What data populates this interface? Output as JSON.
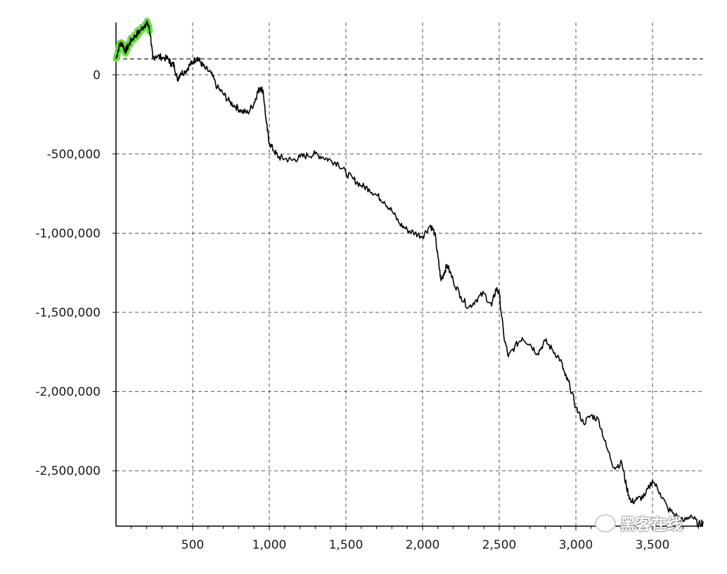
{
  "chart_data": {
    "type": "line",
    "title": "",
    "xlabel": "",
    "ylabel": "",
    "xlim": [
      0,
      3830
    ],
    "ylim": [
      -2850000,
      330000
    ],
    "x_ticks": [
      500,
      1000,
      1500,
      2000,
      2500,
      3000,
      3500
    ],
    "x_tick_labels": [
      "500",
      "1,000",
      "1,500",
      "2,000",
      "2,500",
      "3,000",
      "3,500"
    ],
    "y_ticks": [
      0,
      -500000,
      -1000000,
      -1500000,
      -2000000,
      -2500000
    ],
    "y_tick_labels": [
      "0",
      "-500,000",
      "-1,000,000",
      "-1,500,000",
      "-2,000,000",
      "-2,500,000"
    ],
    "reference_line_y": 100000,
    "grid": true,
    "line_color": "#000000",
    "highlight_color": "#66dd44",
    "highlight_x_range": [
      0,
      220
    ],
    "series": [
      {
        "x": [
          0,
          20,
          40,
          60,
          80,
          100,
          130,
          160,
          190,
          210,
          225,
          240,
          260,
          300,
          340,
          360,
          380,
          400,
          420,
          450,
          480,
          500,
          530,
          550,
          580,
          620,
          660,
          700,
          740,
          780,
          820,
          860,
          900,
          920,
          940,
          960,
          980,
          1000,
          1030,
          1060,
          1100,
          1150,
          1200,
          1250,
          1300,
          1350,
          1400,
          1450,
          1500,
          1550,
          1600,
          1650,
          1700,
          1750,
          1800,
          1850,
          1900,
          1950,
          2000,
          2050,
          2080,
          2100,
          2120,
          2140,
          2160,
          2200,
          2250,
          2300,
          2350,
          2400,
          2450,
          2480,
          2500,
          2530,
          2560,
          2600,
          2650,
          2700,
          2750,
          2800,
          2850,
          2900,
          2930,
          2960,
          3000,
          3050,
          3100,
          3150,
          3200,
          3250,
          3300,
          3330,
          3360,
          3400,
          3450,
          3500,
          3550,
          3600,
          3650,
          3700,
          3750,
          3800,
          3830
        ],
        "values": [
          100000,
          180000,
          200000,
          150000,
          180000,
          220000,
          250000,
          280000,
          320000,
          320000,
          250000,
          100000,
          120000,
          110000,
          100000,
          70000,
          60000,
          -30000,
          10000,
          20000,
          60000,
          80000,
          110000,
          80000,
          40000,
          10000,
          -80000,
          -120000,
          -170000,
          -200000,
          -230000,
          -240000,
          -180000,
          -120000,
          -80000,
          -100000,
          -300000,
          -430000,
          -480000,
          -520000,
          -530000,
          -540000,
          -520000,
          -510000,
          -500000,
          -520000,
          -540000,
          -560000,
          -620000,
          -660000,
          -700000,
          -720000,
          -760000,
          -800000,
          -860000,
          -940000,
          -980000,
          -1000000,
          -1020000,
          -950000,
          -1000000,
          -1150000,
          -1300000,
          -1250000,
          -1200000,
          -1300000,
          -1400000,
          -1470000,
          -1420000,
          -1380000,
          -1460000,
          -1350000,
          -1380000,
          -1650000,
          -1780000,
          -1720000,
          -1660000,
          -1700000,
          -1760000,
          -1680000,
          -1740000,
          -1800000,
          -1900000,
          -1960000,
          -2100000,
          -2200000,
          -2150000,
          -2180000,
          -2350000,
          -2480000,
          -2450000,
          -2600000,
          -2700000,
          -2680000,
          -2660000,
          -2560000,
          -2640000,
          -2740000,
          -2780000,
          -2820000,
          -2780000,
          -2840000,
          -2820000
        ]
      }
    ]
  },
  "watermark": {
    "icon": "wechat-icon",
    "text": "黑客在线"
  }
}
